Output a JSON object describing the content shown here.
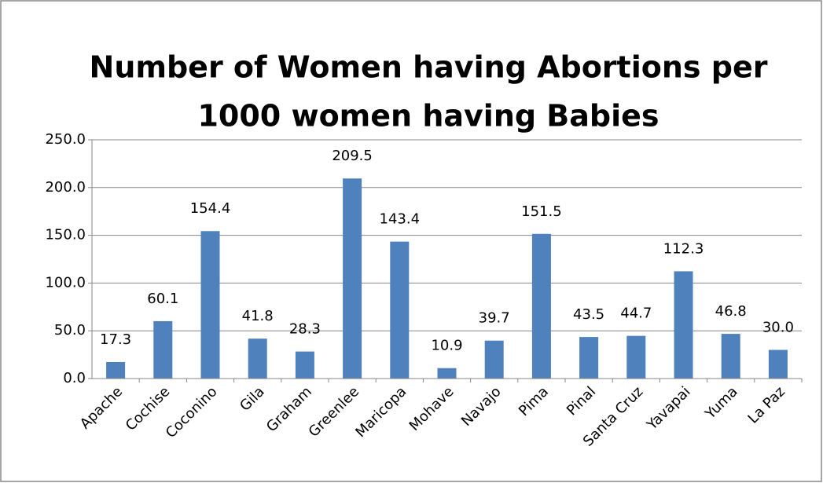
{
  "chart_data": {
    "type": "bar",
    "title": [
      "Number of Women having Abortions per",
      "1000 women having Babies"
    ],
    "categories": [
      "Apache",
      "Cochise",
      "Coconino",
      "Gila",
      "Graham",
      "Greenlee",
      "Maricopa",
      "Mohave",
      "Navajo",
      "Pima",
      "Pinal",
      "Santa Cruz",
      "Yavapai",
      "Yuma",
      "La Paz"
    ],
    "values": [
      17.3,
      60.1,
      154.4,
      41.8,
      28.3,
      209.5,
      143.4,
      10.9,
      39.7,
      151.5,
      43.5,
      44.7,
      112.3,
      46.8,
      30.0
    ],
    "value_labels": [
      "17.3",
      "60.1",
      "154.4",
      "41.8",
      "28.3",
      "209.5",
      "143.4",
      "10.9",
      "39.7",
      "151.5",
      "43.5",
      "44.7",
      "112.3",
      "46.8",
      "30.0"
    ],
    "color": "#4f81bd",
    "ylim": [
      0,
      250
    ],
    "yticks": [
      {
        "value": 0,
        "label": "0.0"
      },
      {
        "value": 50,
        "label": "50.0"
      },
      {
        "value": 100,
        "label": "100.0"
      },
      {
        "value": 150,
        "label": "150.0"
      },
      {
        "value": 200,
        "label": "200.0"
      },
      {
        "value": 250,
        "label": "250.0"
      }
    ],
    "grid": true
  }
}
